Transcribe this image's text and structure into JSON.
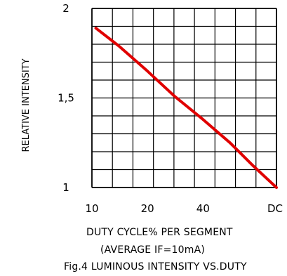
{
  "chart_data": {
    "type": "line",
    "title": "Fig.4 LUMINOUS INTENSITY VS.DUTY",
    "xlabel": "DUTY CYCLE% PER SEGMENT",
    "xlabel_sub": "(AVERAGE IF=10mA)",
    "ylabel": "RELATIVE INTENSITY",
    "categories": [
      "10",
      "20",
      "40",
      "DC"
    ],
    "x_positions": [
      10,
      20,
      40,
      100
    ],
    "x_scale": "log",
    "xlim": [
      10,
      100
    ],
    "ylim": [
      1,
      2
    ],
    "yticks": [
      1,
      1.5,
      2
    ],
    "ytick_labels": [
      "1",
      "1,5",
      "2"
    ],
    "grid": true,
    "series": [
      {
        "color": "#e00000",
        "x": [
          10.5,
          14,
          20,
          28,
          40,
          56,
          75,
          100
        ],
        "y": [
          1.89,
          1.79,
          1.65,
          1.51,
          1.38,
          1.25,
          1.12,
          1.0
        ]
      }
    ]
  }
}
